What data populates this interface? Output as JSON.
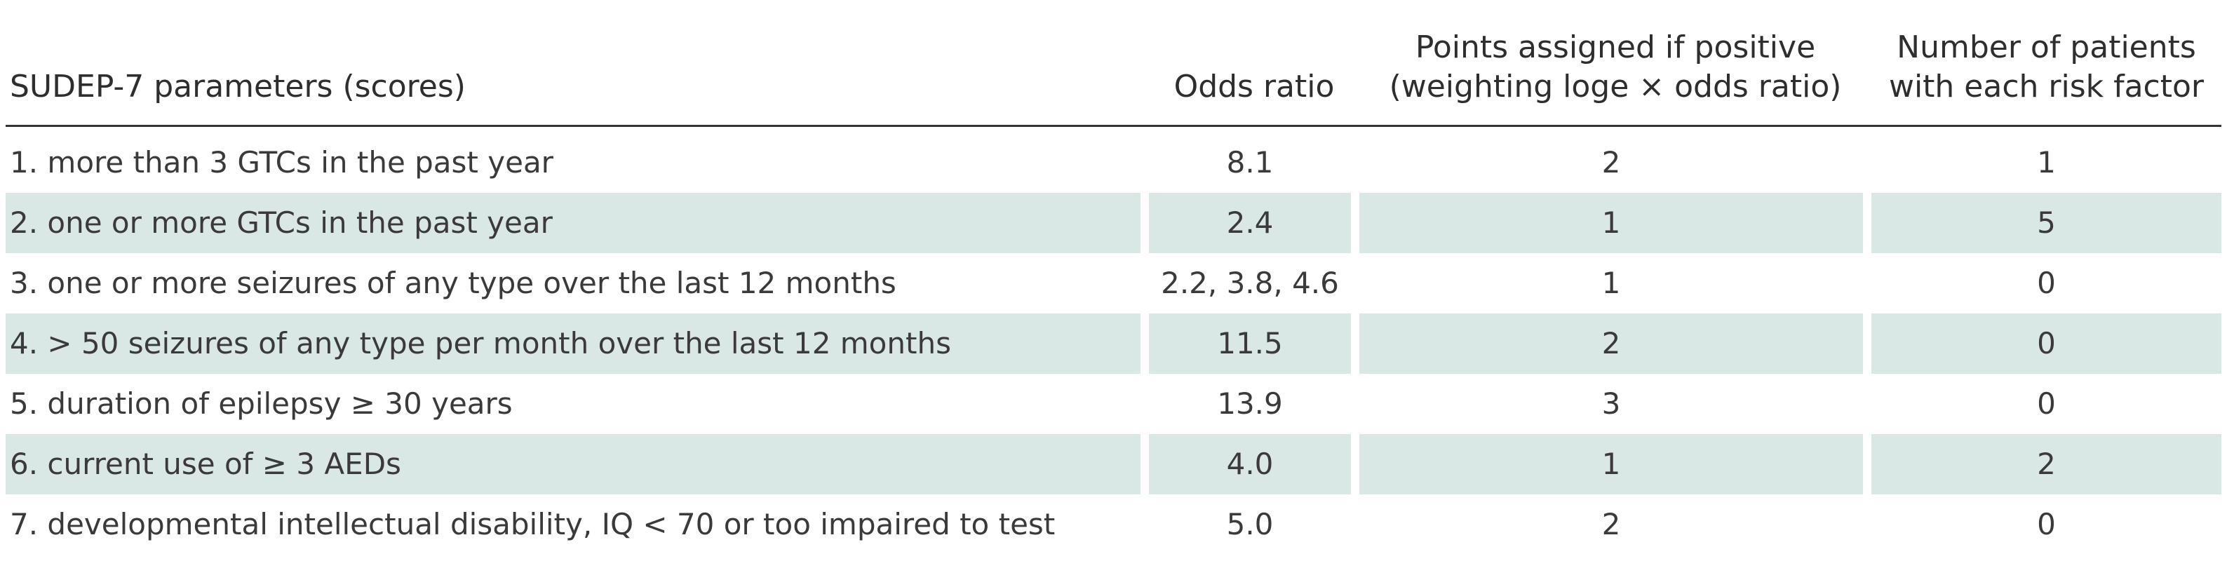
{
  "table": {
    "headers": [
      {
        "lines": [
          "SUDEP-7 parameters (scores)"
        ]
      },
      {
        "lines": [
          "Odds ratio"
        ]
      },
      {
        "lines": [
          "Points assigned if positive",
          "(weighting loge × odds ratio)"
        ]
      },
      {
        "lines": [
          "Number of patients",
          "with each risk factor"
        ]
      }
    ],
    "rows": [
      {
        "parameter": "1. more than 3 GTCs in the past year",
        "odds_ratio": "8.1",
        "points": "2",
        "patients": "1"
      },
      {
        "parameter": "2. one or more GTCs in the past year",
        "odds_ratio": "2.4",
        "points": "1",
        "patients": "5"
      },
      {
        "parameter": "3. one or more seizures of any type over the last 12 months",
        "odds_ratio": "2.2, 3.8, 4.6",
        "points": "1",
        "patients": "0"
      },
      {
        "parameter": "4. > 50 seizures of any type per month over the last 12 months",
        "odds_ratio": "11.5",
        "points": "2",
        "patients": "0"
      },
      {
        "parameter": "5. duration of epilepsy ≥ 30 years",
        "odds_ratio": "13.9",
        "points": "3",
        "patients": "0"
      },
      {
        "parameter": "6. current use of ≥ 3 AEDs",
        "odds_ratio": "4.0",
        "points": "1",
        "patients": "2"
      },
      {
        "parameter": "7. developmental intellectual disability, IQ < 70 or too impaired to test",
        "odds_ratio": "5.0",
        "points": "2",
        "patients": "0"
      }
    ],
    "shade_color": "#d9e8e5"
  }
}
